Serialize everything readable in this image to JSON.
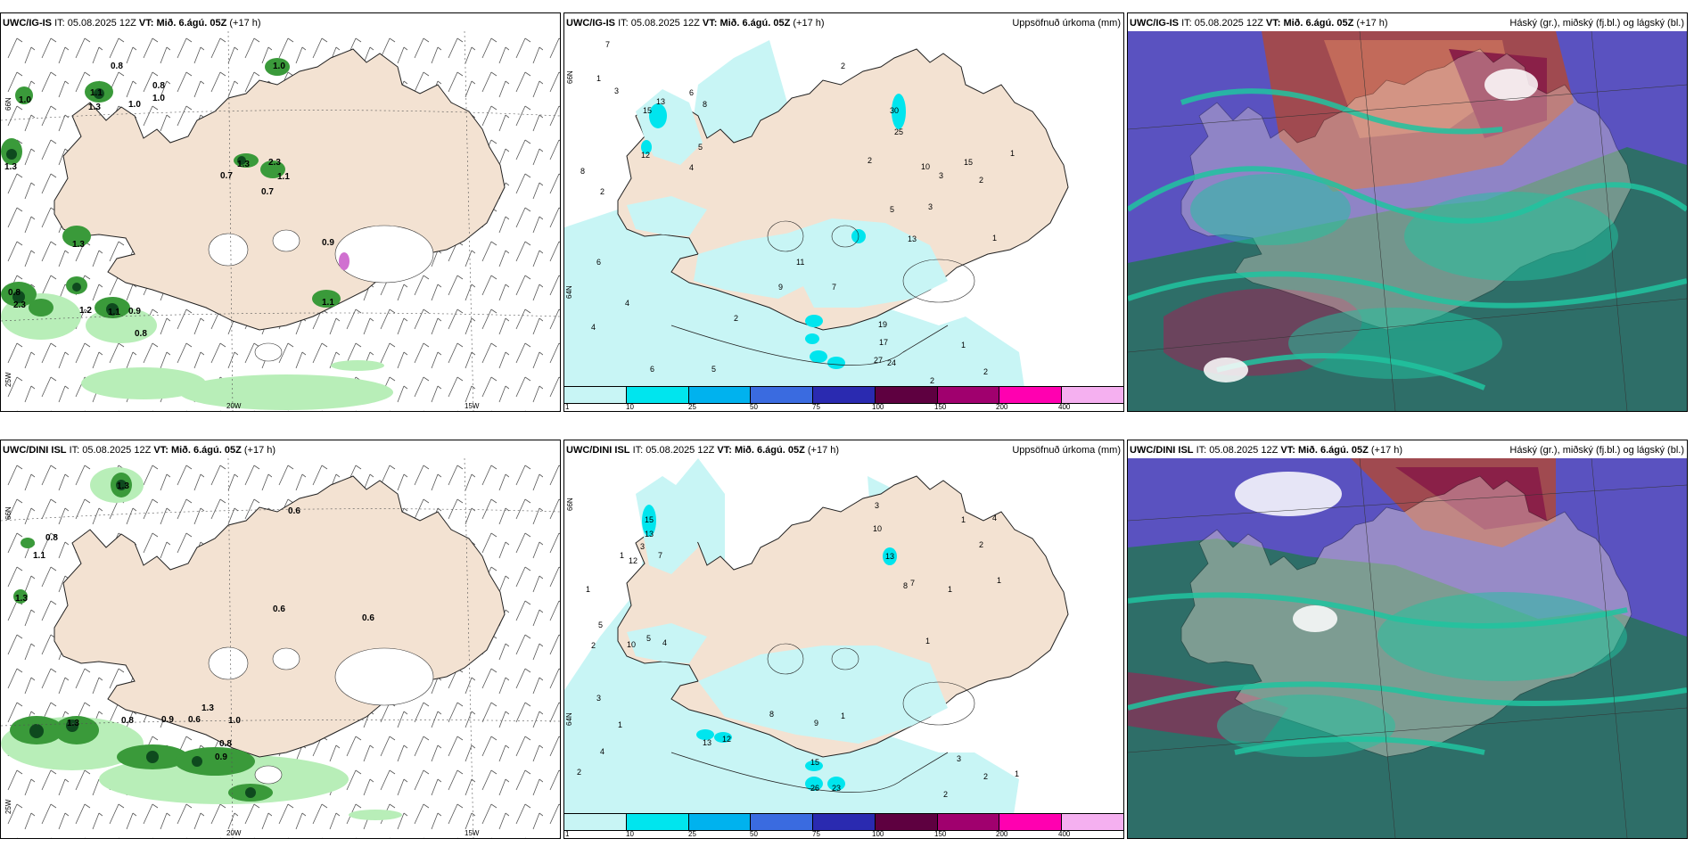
{
  "panels": [
    {
      "model": "UWC/IG-IS",
      "it_label": "IT:",
      "it": "05.08.2025 12Z",
      "vt_label": "VT:",
      "vt": "Mið. 6.ágú. 05Z",
      "lead": "(+17 h)",
      "subtitle": ""
    },
    {
      "model": "UWC/IG-IS",
      "it_label": "IT:",
      "it": "05.08.2025 12Z",
      "vt_label": "VT:",
      "vt": "Mið. 6.ágú. 05Z",
      "lead": "(+17 h)",
      "subtitle": "Uppsöfnuð úrkoma (mm)"
    },
    {
      "model": "UWC/IG-IS",
      "it_label": "IT:",
      "it": "05.08.2025 12Z",
      "vt_label": "VT:",
      "vt": "Mið. 6.ágú. 05Z",
      "lead": "(+17 h)",
      "subtitle": "Háský (gr.), miðský (fj.bl.) og lágský (bl.)"
    },
    {
      "model": "UWC/DINI ISL",
      "it_label": "IT:",
      "it": "05.08.2025 12Z",
      "vt_label": "VT:",
      "vt": "Mið. 6.ágú. 05Z",
      "lead": "(+17 h)",
      "subtitle": ""
    },
    {
      "model": "UWC/DINI ISL",
      "it_label": "IT:",
      "it": "05.08.2025 12Z",
      "vt_label": "VT:",
      "vt": "Mið. 6.ágú. 05Z",
      "lead": "(+17 h)",
      "subtitle": "Uppsöfnuð úrkoma (mm)"
    },
    {
      "model": "UWC/DINI ISL",
      "it_label": "IT:",
      "it": "05.08.2025 12Z",
      "vt_label": "VT:",
      "vt": "Mið. 6.ágú. 05Z",
      "lead": "(+17 h)",
      "subtitle": "Háský (gr.), miðský (fj.bl.) og lágský (bl.)"
    }
  ],
  "axes": {
    "lat_66": "66N",
    "lon_25": "25W",
    "lon_20": "20W",
    "lon_15": "15W",
    "lat_64": "64N"
  },
  "legend": {
    "ticks": [
      "1",
      "10",
      "25",
      "50",
      "75",
      "100",
      "150",
      "200",
      "400"
    ],
    "colors": [
      "#c8f5f5",
      "#00e5ee",
      "#00b2ee",
      "#3a6be0",
      "#2a2ab0",
      "#5e0040",
      "#a0006e",
      "#ff00b0",
      "#f5b0f0"
    ]
  },
  "colors": {
    "land": "#f3e2d2",
    "sea": "#ffffff",
    "precip_light": "#c8f5f5",
    "precip_mid": "#00e5ee",
    "shower_light": "#b8eeb8",
    "shower_mid": "#3a9a3a",
    "shower_dark": "#0e4a1e",
    "cloud_high": "#2e7a70",
    "cloud_mid": "#20c4a0",
    "cloud_low": "#6a5ac8"
  },
  "showers_igis": [
    "0.8",
    "1.1",
    "1.3",
    "1.0",
    "1.0",
    "1.3",
    "1.3",
    "0.7",
    "1.1",
    "2.3",
    "1.3",
    "0.7",
    "0.8",
    "1.3",
    "1.3",
    "0.8",
    "2.3",
    "1.2",
    "1.1",
    "0.9",
    "0.8",
    "0.9",
    "1.1",
    "1.0"
  ],
  "precip_igis": [
    "7",
    "15",
    "13",
    "5",
    "3",
    "12",
    "6",
    "8",
    "30",
    "25",
    "19",
    "17",
    "27",
    "24",
    "11",
    "9",
    "13",
    "2",
    "4",
    "1",
    "6",
    "8",
    "10"
  ],
  "showers_dini": [
    "0.8",
    "1.1",
    "1.3",
    "0.6",
    "0.6",
    "0.6",
    "1.3",
    "0.8",
    "0.9",
    "0.6",
    "1.3",
    "1.0",
    "0.8",
    "0.9",
    "1.3"
  ],
  "precip_dini": [
    "15",
    "13",
    "12",
    "10",
    "5",
    "13",
    "12",
    "15",
    "26",
    "23",
    "7",
    "8",
    "3",
    "2",
    "4",
    "6",
    "9",
    "1"
  ]
}
